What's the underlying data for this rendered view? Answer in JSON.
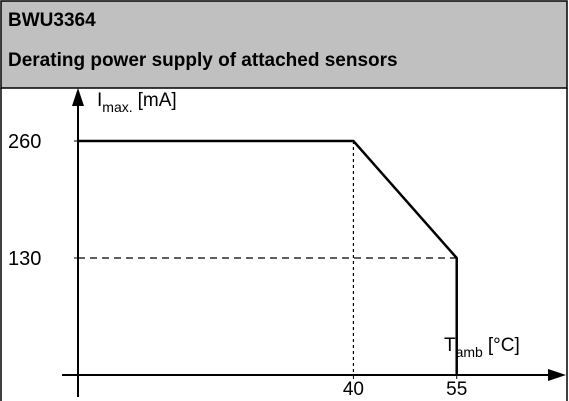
{
  "header": {
    "model": "BWU3364",
    "title": "Derating power supply of attached sensors"
  },
  "chart_data": {
    "type": "line",
    "ylabel": [
      "I",
      "max.",
      "[mA]"
    ],
    "xlabel": [
      "T",
      "amb",
      "[°C]"
    ],
    "x": [
      0,
      40,
      55,
      55
    ],
    "series": [
      {
        "color": "#000000",
        "values": [
          260,
          260,
          130,
          0
        ]
      }
    ],
    "xlim": [
      0,
      70
    ],
    "ylim": [
      0,
      300
    ],
    "xticks": [
      40,
      55
    ],
    "yticks": [
      130,
      260
    ]
  }
}
